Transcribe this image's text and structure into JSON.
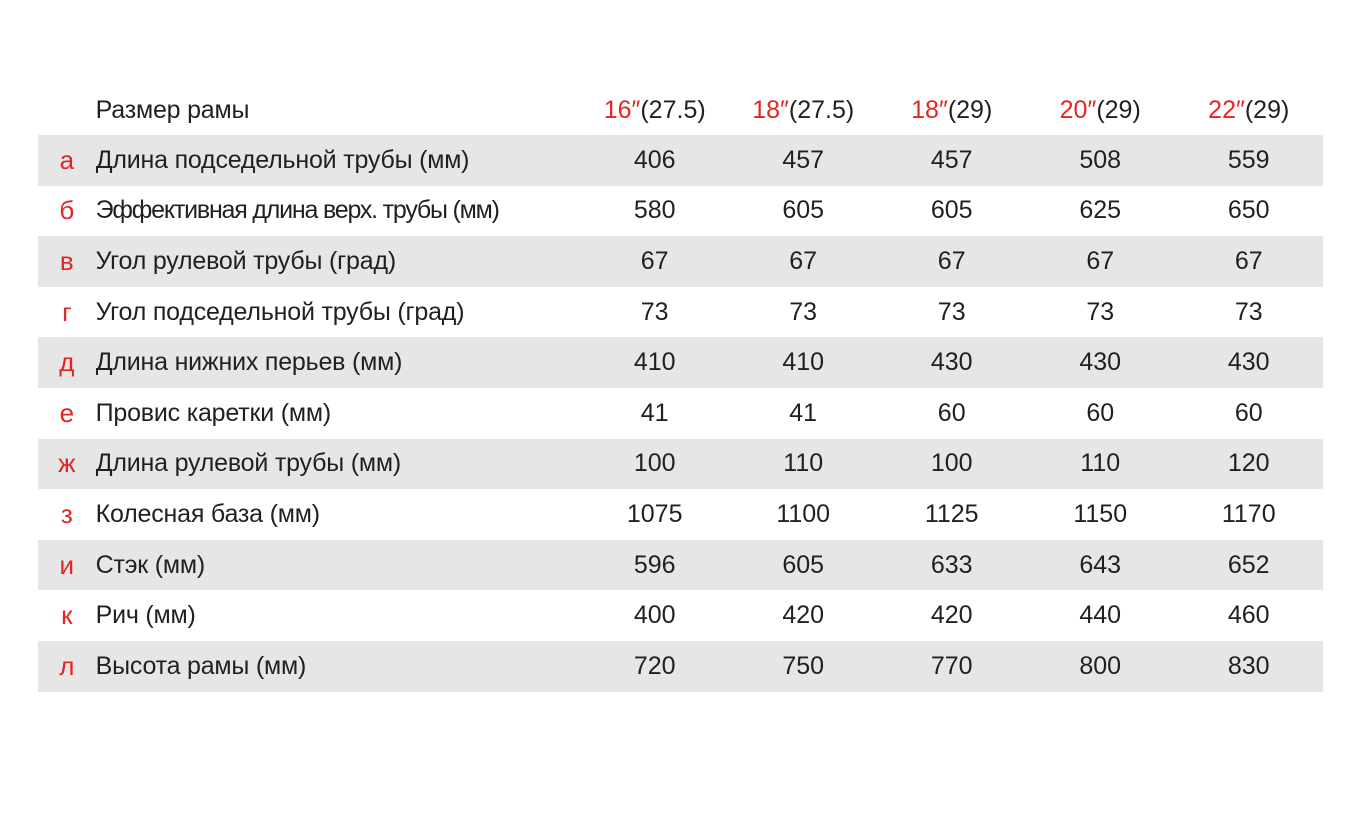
{
  "header": {
    "label": "Размер рамы",
    "sizes": [
      {
        "inch": "16″",
        "wheel": "(27.5)"
      },
      {
        "inch": "18″",
        "wheel": "(27.5)"
      },
      {
        "inch": "18″",
        "wheel": "(29)"
      },
      {
        "inch": "20″",
        "wheel": "(29)"
      },
      {
        "inch": "22″",
        "wheel": "(29)"
      }
    ]
  },
  "rows": [
    {
      "letter": "a",
      "param": "Длина подседельной трубы (мм)",
      "values": [
        "406",
        "457",
        "457",
        "508",
        "559"
      ]
    },
    {
      "letter": "б",
      "param": "Эффективная длина верх. трубы (мм)",
      "values": [
        "580",
        "605",
        "605",
        "625",
        "650"
      ]
    },
    {
      "letter": "в",
      "param": "Угол рулевой трубы (град)",
      "values": [
        "67",
        "67",
        "67",
        "67",
        "67"
      ]
    },
    {
      "letter": "г",
      "param": "Угол подседельной трубы (град)",
      "values": [
        "73",
        "73",
        "73",
        "73",
        "73"
      ]
    },
    {
      "letter": "д",
      "param": "Длина нижних перьев (мм)",
      "values": [
        "410",
        "410",
        "430",
        "430",
        "430"
      ]
    },
    {
      "letter": "е",
      "param": "Провис каретки (мм)",
      "values": [
        "41",
        "41",
        "60",
        "60",
        "60"
      ]
    },
    {
      "letter": "ж",
      "param": "Длина рулевой трубы (мм)",
      "values": [
        "100",
        "110",
        "100",
        "110",
        "120"
      ]
    },
    {
      "letter": "з",
      "param": "Колесная база (мм)",
      "values": [
        "1075",
        "1100",
        "1125",
        "1150",
        "1170"
      ]
    },
    {
      "letter": "и",
      "param": "Стэк (мм)",
      "values": [
        "596",
        "605",
        "633",
        "643",
        "652"
      ]
    },
    {
      "letter": "к",
      "param": "Рич (мм)",
      "values": [
        "400",
        "420",
        "420",
        "440",
        "460"
      ]
    },
    {
      "letter": "л",
      "param": "Высота рамы (мм)",
      "values": [
        "720",
        "750",
        "770",
        "800",
        "830"
      ]
    }
  ]
}
